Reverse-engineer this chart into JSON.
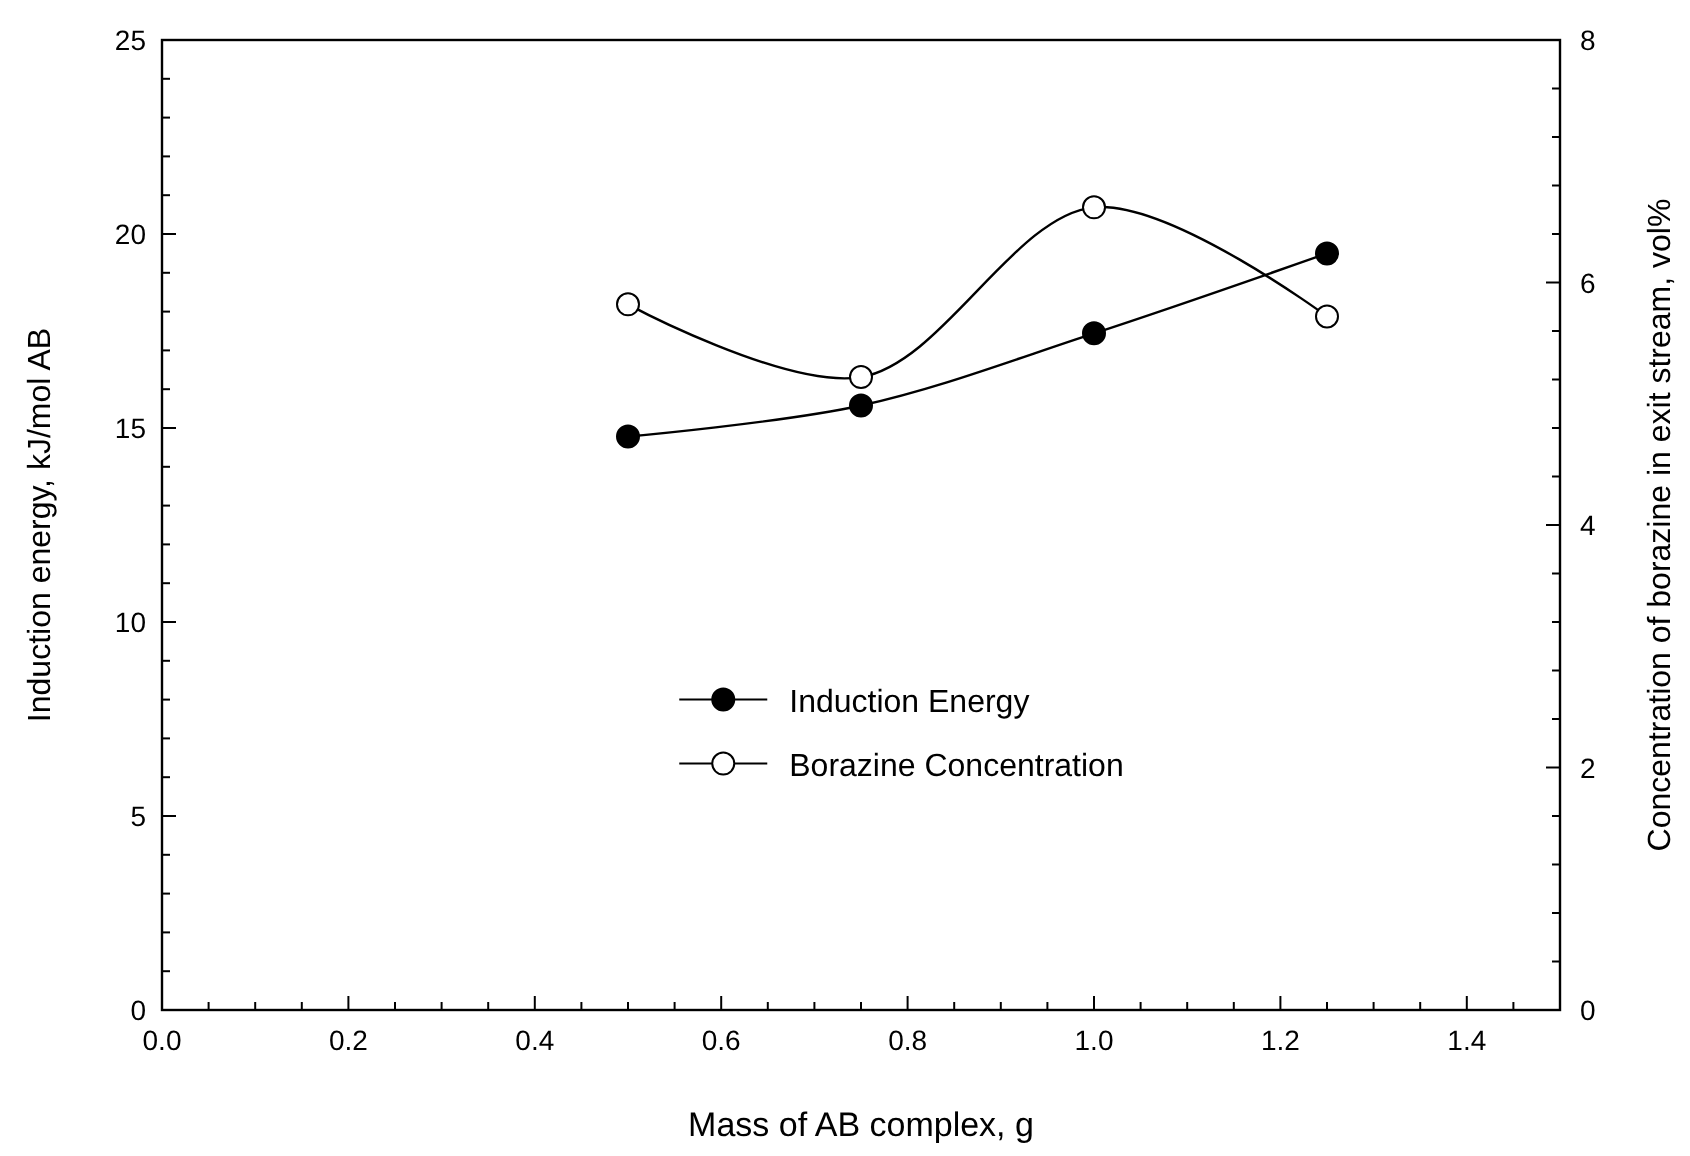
{
  "chart_data": {
    "type": "line",
    "xlabel": "Mass of AB complex, g",
    "ylabel": "Induction energy, kJ/mol AB",
    "y2label": "Concentration of borazine in exit stream, vol%",
    "x": [
      0.5,
      0.75,
      1.0,
      1.25
    ],
    "series": [
      {
        "name": "Induction Energy",
        "color": "#000000",
        "values": [
          14.78,
          15.58,
          17.44,
          19.5
        ]
      },
      {
        "name": "Borazine Concentration",
        "color": "#ffffff",
        "axis": "y2",
        "values": [
          5.82,
          5.22,
          6.62,
          5.72
        ]
      }
    ],
    "xlim": [
      0,
      1.5
    ],
    "ylim": [
      0,
      25
    ],
    "y2lim": [
      0,
      8
    ],
    "xticks": [
      {
        "value": 0,
        "label": "0.0"
      },
      {
        "value": 0.05,
        "label": null
      },
      {
        "value": 0.1,
        "label": null
      },
      {
        "value": 0.15,
        "label": null
      },
      {
        "value": 0.2,
        "label": "0.2"
      },
      {
        "value": 0.25,
        "label": null
      },
      {
        "value": 0.3,
        "label": null
      },
      {
        "value": 0.35,
        "label": null
      },
      {
        "value": 0.4,
        "label": "0.4"
      },
      {
        "value": 0.45,
        "label": null
      },
      {
        "value": 0.5,
        "label": null
      },
      {
        "value": 0.55,
        "label": null
      },
      {
        "value": 0.6,
        "label": "0.6"
      },
      {
        "value": 0.65,
        "label": null
      },
      {
        "value": 0.7,
        "label": null
      },
      {
        "value": 0.75,
        "label": null
      },
      {
        "value": 0.8,
        "label": "0.8"
      },
      {
        "value": 0.85,
        "label": null
      },
      {
        "value": 0.9,
        "label": null
      },
      {
        "value": 0.95,
        "label": null
      },
      {
        "value": 1.0,
        "label": "1.0"
      },
      {
        "value": 1.05,
        "label": null
      },
      {
        "value": 1.1,
        "label": null
      },
      {
        "value": 1.15,
        "label": null
      },
      {
        "value": 1.2,
        "label": "1.2"
      },
      {
        "value": 1.25,
        "label": null
      },
      {
        "value": 1.3,
        "label": null
      },
      {
        "value": 1.35,
        "label": null
      },
      {
        "value": 1.4,
        "label": "1.4"
      },
      {
        "value": 1.45,
        "label": null
      }
    ],
    "yticks": [
      0,
      {
        "value": 1,
        "label": null
      },
      {
        "value": 2,
        "label": null
      },
      {
        "value": 3,
        "label": null
      },
      {
        "value": 4,
        "label": null
      },
      5,
      {
        "value": 6,
        "label": null
      },
      {
        "value": 7,
        "label": null
      },
      {
        "value": 8,
        "label": null
      },
      {
        "value": 9,
        "label": null
      },
      10,
      {
        "value": 11,
        "label": null
      },
      {
        "value": 12,
        "label": null
      },
      {
        "value": 13,
        "label": null
      },
      {
        "value": 14,
        "label": null
      },
      15,
      {
        "value": 16,
        "label": null
      },
      {
        "value": 17,
        "label": null
      },
      {
        "value": 18,
        "label": null
      },
      {
        "value": 19,
        "label": null
      },
      20,
      {
        "value": 21,
        "label": null
      },
      {
        "value": 22,
        "label": null
      },
      {
        "value": 23,
        "label": null
      },
      {
        "value": 24,
        "label": null
      },
      25
    ],
    "y2ticks": [
      0,
      {
        "value": 0.4,
        "label": null
      },
      {
        "value": 0.8,
        "label": null
      },
      {
        "value": 1.2,
        "label": null
      },
      {
        "value": 1.6,
        "label": null
      },
      2,
      {
        "value": 2.4,
        "label": null
      },
      {
        "value": 2.8,
        "label": null
      },
      {
        "value": 3.2,
        "label": null
      },
      {
        "value": 3.6,
        "label": null
      },
      4,
      {
        "value": 4.4,
        "label": null
      },
      {
        "value": 4.8,
        "label": null
      },
      {
        "value": 5.2,
        "label": null
      },
      {
        "value": 5.6,
        "label": null
      },
      6,
      {
        "value": 6.4,
        "label": null
      },
      {
        "value": 6.8,
        "label": null
      },
      {
        "value": 7.2,
        "label": null
      },
      {
        "value": 7.6,
        "label": null
      },
      8
    ],
    "marker": "circle",
    "legend": "center",
    "grid": false
  }
}
